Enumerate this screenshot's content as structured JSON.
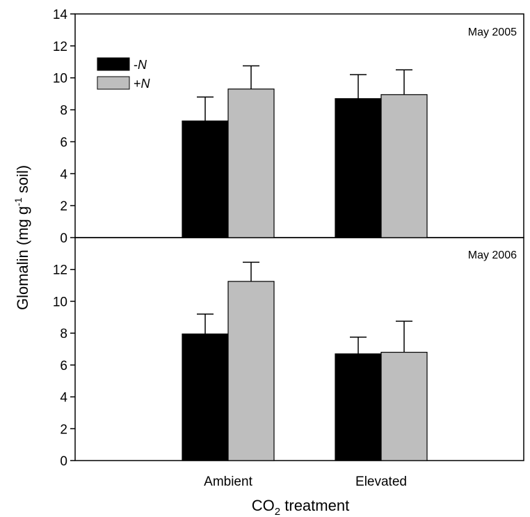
{
  "chart_data": {
    "type": "bar",
    "categories": [
      "Ambient",
      "Elevated"
    ],
    "xlabel_main": "CO",
    "xlabel_sub": "2",
    "xlabel_rest": " treatment",
    "ylabel_main": "Glomalin (mg g",
    "ylabel_sup": "-1",
    "ylabel_rest": " soil)",
    "legend": {
      "placement": "top-left",
      "entries": [
        {
          "sign": "-",
          "letter": "N",
          "color": "#000000"
        },
        {
          "sign": "+",
          "letter": "N",
          "color": "#bebebe"
        }
      ]
    },
    "panels": [
      {
        "label": "May 2005",
        "ylim": [
          0,
          14
        ],
        "yticks": [
          "0",
          "2",
          "4",
          "6",
          "8",
          "10",
          "12",
          "14"
        ],
        "series": [
          {
            "values": [
              7.3,
              8.7
            ],
            "errors": [
              1.5,
              1.5
            ],
            "color": "#000000"
          },
          {
            "values": [
              9.3,
              8.95
            ],
            "errors": [
              1.45,
              1.55
            ],
            "color": "#bebebe"
          }
        ]
      },
      {
        "label": "May 2006",
        "ylim": [
          0,
          14
        ],
        "yticks": [
          "0",
          "2",
          "4",
          "6",
          "8",
          "10",
          "12"
        ],
        "series": [
          {
            "values": [
              7.95,
              6.7
            ],
            "errors": [
              1.25,
              1.05
            ],
            "color": "#000000"
          },
          {
            "values": [
              11.25,
              6.8
            ],
            "errors": [
              1.2,
              1.95
            ],
            "color": "#bebebe"
          }
        ]
      }
    ]
  }
}
